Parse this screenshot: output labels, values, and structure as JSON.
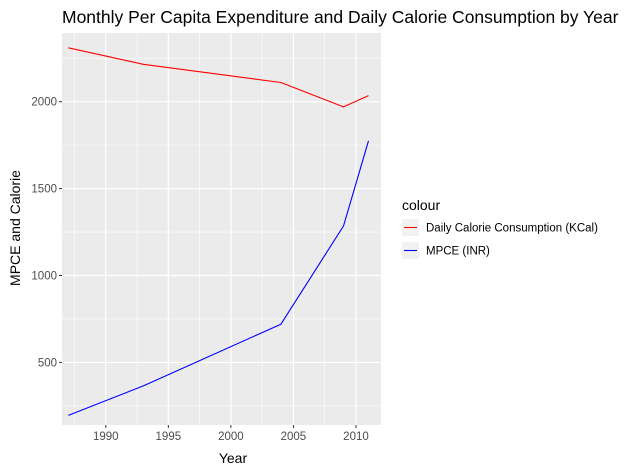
{
  "chart_data": {
    "type": "line",
    "title": "Monthly Per Capita Expenditure and Daily Calorie Consumption by Year",
    "xlabel": "Year",
    "ylabel": "MPCE and Calorie",
    "xlim": [
      1986.5,
      2012
    ],
    "ylim": [
      140,
      2395
    ],
    "xticks": [
      1990,
      1995,
      2000,
      2005,
      2010
    ],
    "yticks": [
      500,
      1000,
      1500,
      2000
    ],
    "grid": true,
    "legend": {
      "title": "colour",
      "placement": "right"
    },
    "series": [
      {
        "name": "Daily Calorie Consumption (KCal)",
        "color": "#ff0000",
        "x": [
          1987,
          1993,
          2004,
          2009,
          2011
        ],
        "y": [
          2310,
          2215,
          2110,
          1970,
          2035
        ]
      },
      {
        "name": "MPCE (INR)",
        "color": "#0000ff",
        "x": [
          1987,
          1993,
          2004,
          2009,
          2011
        ],
        "y": [
          195,
          365,
          720,
          1285,
          1775
        ]
      }
    ]
  }
}
